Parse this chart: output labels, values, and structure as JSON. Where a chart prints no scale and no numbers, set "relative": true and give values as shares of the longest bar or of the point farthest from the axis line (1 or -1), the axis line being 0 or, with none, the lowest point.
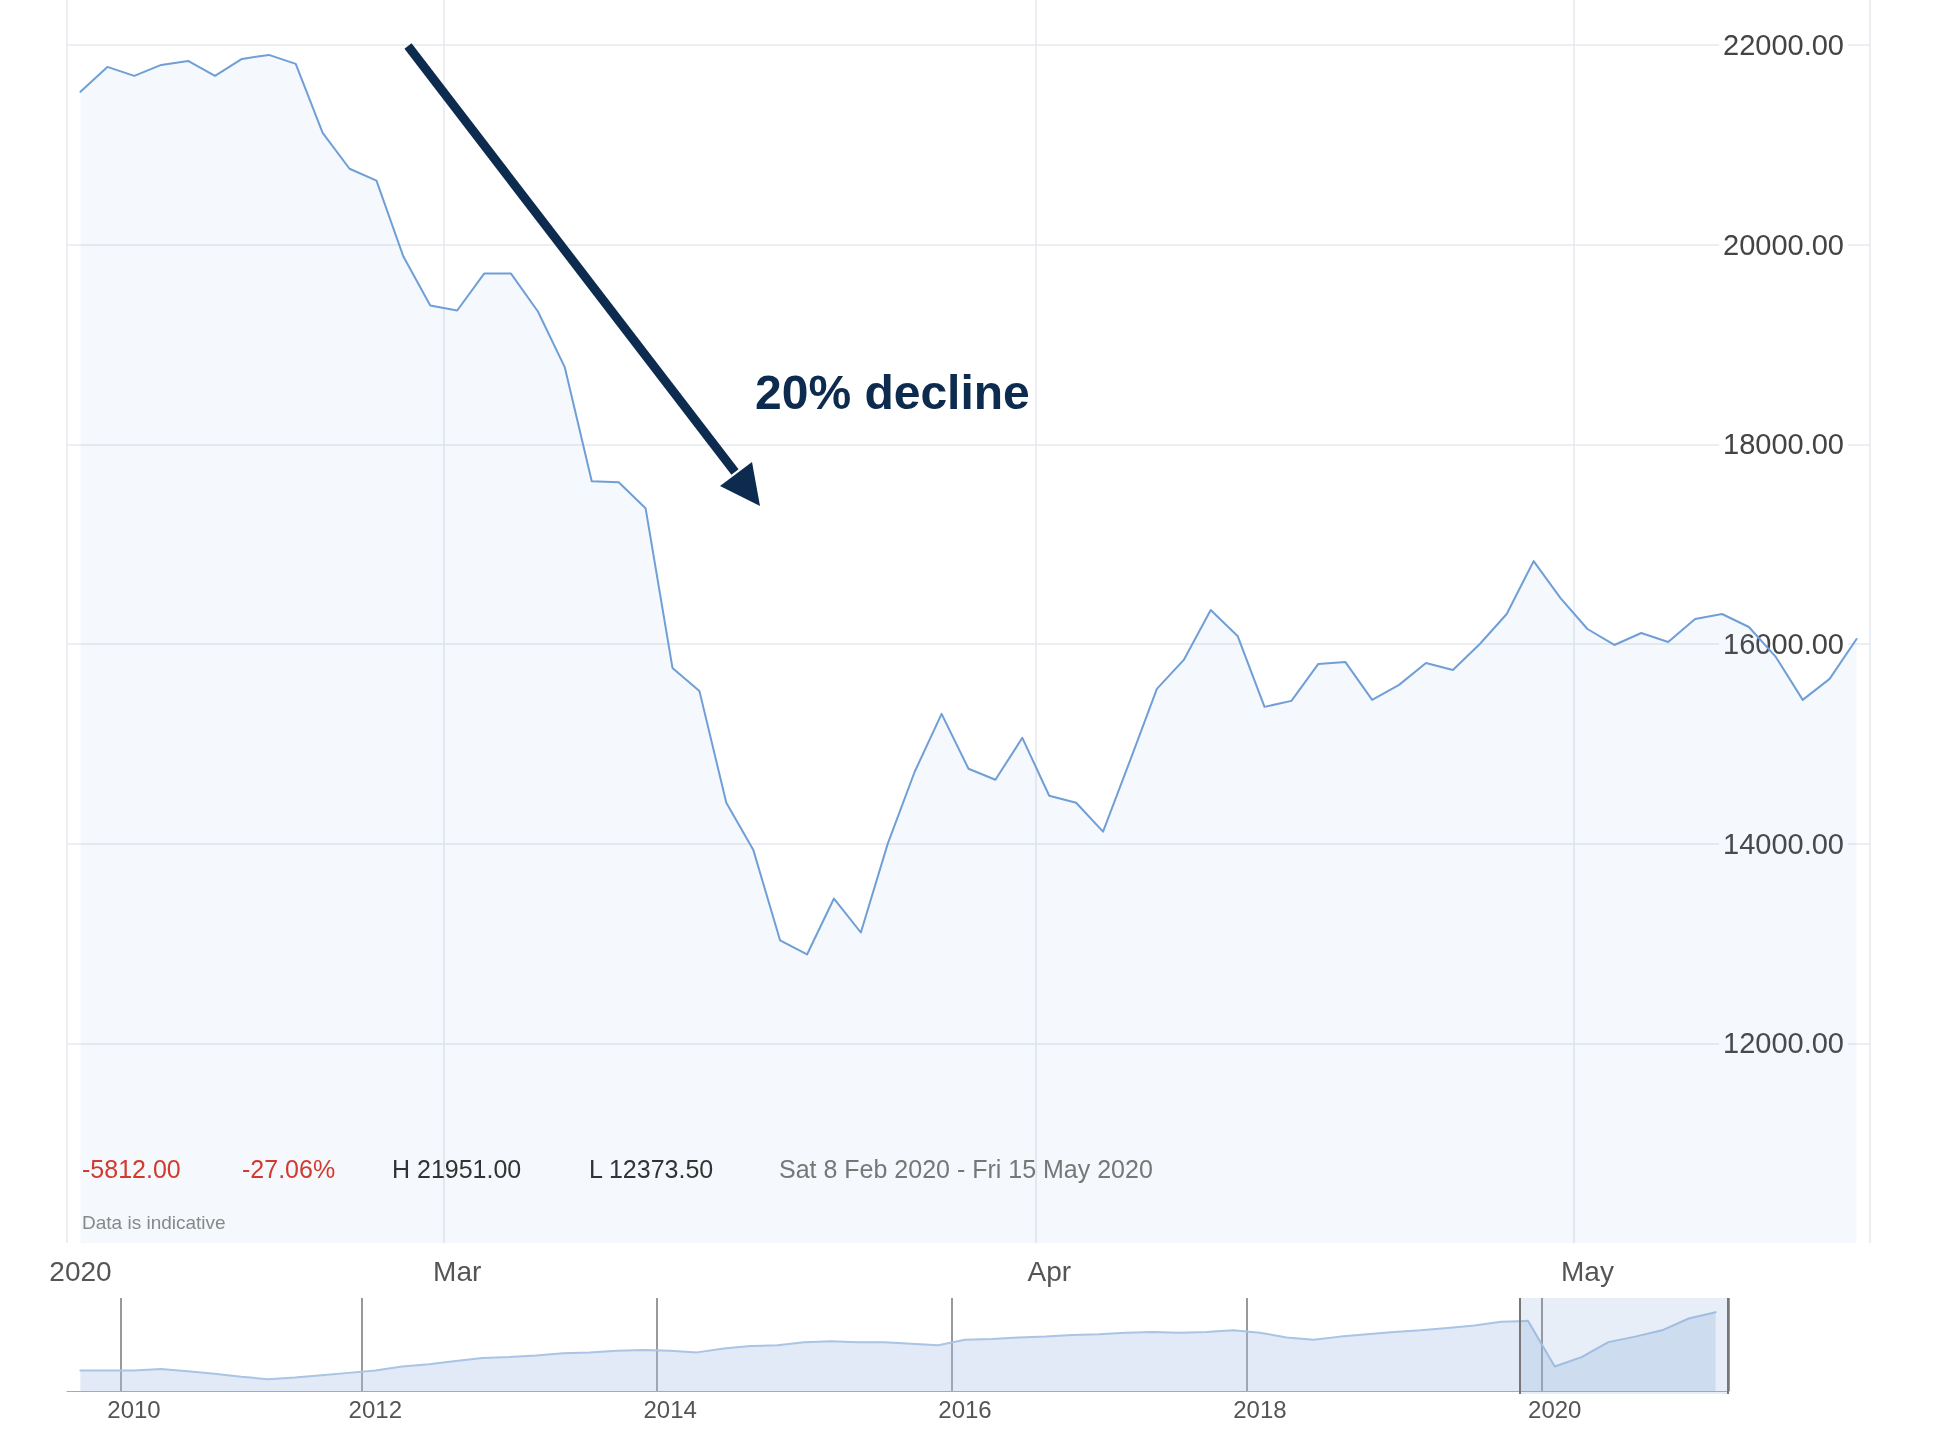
{
  "chart_data": [
    {
      "type": "area",
      "color": "#6f9fd6",
      "marker": "none",
      "grid": true,
      "categories": [
        "2020",
        null,
        null,
        null,
        null,
        null,
        null,
        null,
        null,
        null,
        null,
        null,
        null,
        null,
        "Mar",
        null,
        null,
        null,
        null,
        null,
        null,
        null,
        null,
        null,
        null,
        null,
        null,
        null,
        null,
        null,
        null,
        null,
        null,
        null,
        null,
        null,
        "Apr",
        null,
        null,
        null,
        null,
        null,
        null,
        null,
        null,
        null,
        null,
        null,
        null,
        null,
        null,
        null,
        null,
        null,
        null,
        null,
        "May",
        null,
        null,
        null,
        null,
        null,
        null,
        null,
        null,
        null,
        null
      ],
      "values": [
        21530,
        21780,
        21690,
        21800,
        21840,
        21690,
        21860,
        21900,
        21810,
        21120,
        20760,
        20640,
        19880,
        19390,
        19340,
        19710,
        19710,
        19330,
        18770,
        17630,
        17620,
        17360,
        15760,
        15530,
        14410,
        13940,
        13030,
        12890,
        13450,
        13110,
        14000,
        14720,
        15300,
        14750,
        14640,
        15060,
        14480,
        14410,
        14120,
        14830,
        15550,
        15840,
        16340,
        16080,
        15370,
        15430,
        15800,
        15820,
        15440,
        15590,
        15810,
        15740,
        16000,
        16300,
        16830,
        16460,
        16150,
        15990,
        16110,
        16020,
        16250,
        16300,
        16170,
        15870,
        15440,
        15650,
        16050
      ],
      "ylim": [
        10000,
        22450
      ],
      "yticks": [
        {
          "value": 12000,
          "label": "12000.00"
        },
        {
          "value": 14000,
          "label": "14000.00"
        },
        {
          "value": 16000,
          "label": "16000.00"
        },
        {
          "value": 18000,
          "label": "18000.00"
        },
        {
          "value": 20000,
          "label": "20000.00"
        },
        {
          "value": 22000,
          "label": "22000.00"
        }
      ],
      "annotations": [
        "20% decline",
        "-5812.00",
        "-27.06%",
        "H 21951.00",
        "L 12373.50",
        "Sat 8 Feb 2020 - Fri 15 May 2020",
        "Data is indicative"
      ]
    },
    {
      "type": "area",
      "color": "#a9c4e4",
      "relative": true,
      "tick_labels": "x",
      "grid": "x",
      "marker": "none",
      "categories": [
        null,
        null,
        "2010",
        null,
        null,
        null,
        null,
        null,
        null,
        null,
        null,
        "2012",
        null,
        null,
        null,
        null,
        null,
        null,
        null,
        null,
        null,
        null,
        "2014",
        null,
        null,
        null,
        null,
        null,
        null,
        null,
        null,
        null,
        null,
        "2016",
        null,
        null,
        null,
        null,
        null,
        null,
        null,
        null,
        null,
        null,
        "2018",
        null,
        null,
        null,
        null,
        null,
        null,
        null,
        null,
        null,
        null,
        "2020",
        null,
        null,
        null,
        null,
        null,
        null
      ],
      "values": [
        0.26,
        0.26,
        0.26,
        0.28,
        0.25,
        0.22,
        0.18,
        0.15,
        0.17,
        0.2,
        0.23,
        0.26,
        0.31,
        0.34,
        0.38,
        0.42,
        0.43,
        0.45,
        0.48,
        0.49,
        0.51,
        0.52,
        0.51,
        0.49,
        0.54,
        0.57,
        0.58,
        0.62,
        0.63,
        0.62,
        0.62,
        0.6,
        0.58,
        0.65,
        0.66,
        0.68,
        0.69,
        0.71,
        0.72,
        0.74,
        0.75,
        0.74,
        0.75,
        0.77,
        0.74,
        0.68,
        0.65,
        0.69,
        0.72,
        0.75,
        0.77,
        0.8,
        0.83,
        0.88,
        0.89,
        0.31,
        0.43,
        0.62,
        0.69,
        0.77,
        0.92,
        1
      ]
    }
  ]
}
